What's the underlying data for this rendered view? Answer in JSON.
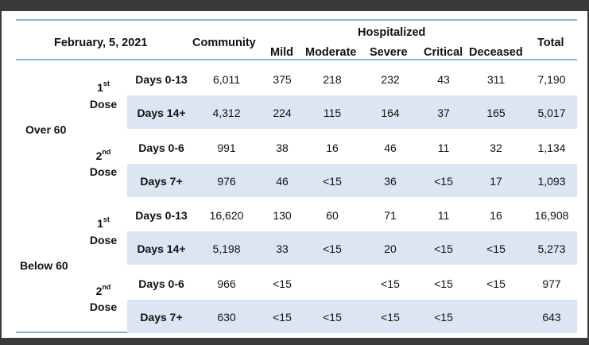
{
  "header": {
    "date": "February, 5, 2021",
    "community": "Community",
    "hospitalized": "Hospitalized",
    "mild": "Mild",
    "moderate": "Moderate",
    "severe": "Severe",
    "critical": "Critical",
    "deceased": "Deceased",
    "total": "Total"
  },
  "groups": {
    "over60": "Over 60",
    "below60": "Below 60"
  },
  "dose": {
    "first_num": "1",
    "first_sup": "st",
    "second_num": "2",
    "second_sup": "nd",
    "word": "Dose"
  },
  "rows": [
    {
      "period": "Days 0-13",
      "community": "6,011",
      "mild": "375",
      "moderate": "218",
      "severe": "232",
      "critical": "43",
      "deceased": "311",
      "total": "7,190"
    },
    {
      "period": "Days 14+",
      "community": "4,312",
      "mild": "224",
      "moderate": "115",
      "severe": "164",
      "critical": "37",
      "deceased": "165",
      "total": "5,017"
    },
    {
      "period": "Days 0-6",
      "community": "991",
      "mild": "38",
      "moderate": "16",
      "severe": "46",
      "critical": "11",
      "deceased": "32",
      "total": "1,134"
    },
    {
      "period": "Days 7+",
      "community": "976",
      "mild": "46",
      "moderate": "<15",
      "severe": "36",
      "critical": "<15",
      "deceased": "17",
      "total": "1,093"
    },
    {
      "period": "Days 0-13",
      "community": "16,620",
      "mild": "130",
      "moderate": "60",
      "severe": "71",
      "critical": "11",
      "deceased": "16",
      "total": "16,908"
    },
    {
      "period": "Days 14+",
      "community": "5,198",
      "mild": "33",
      "moderate": "<15",
      "severe": "20",
      "critical": "<15",
      "deceased": "<15",
      "total": "5,273"
    },
    {
      "period": "Days 0-6",
      "community": "966",
      "mild": "<15",
      "moderate": "",
      "severe": "<15",
      "critical": "<15",
      "deceased": "<15",
      "total": "977"
    },
    {
      "period": "Days 7+",
      "community": "630",
      "mild": "<15",
      "moderate": "<15",
      "severe": "<15",
      "critical": "<15",
      "deceased": "",
      "total": "643"
    }
  ]
}
